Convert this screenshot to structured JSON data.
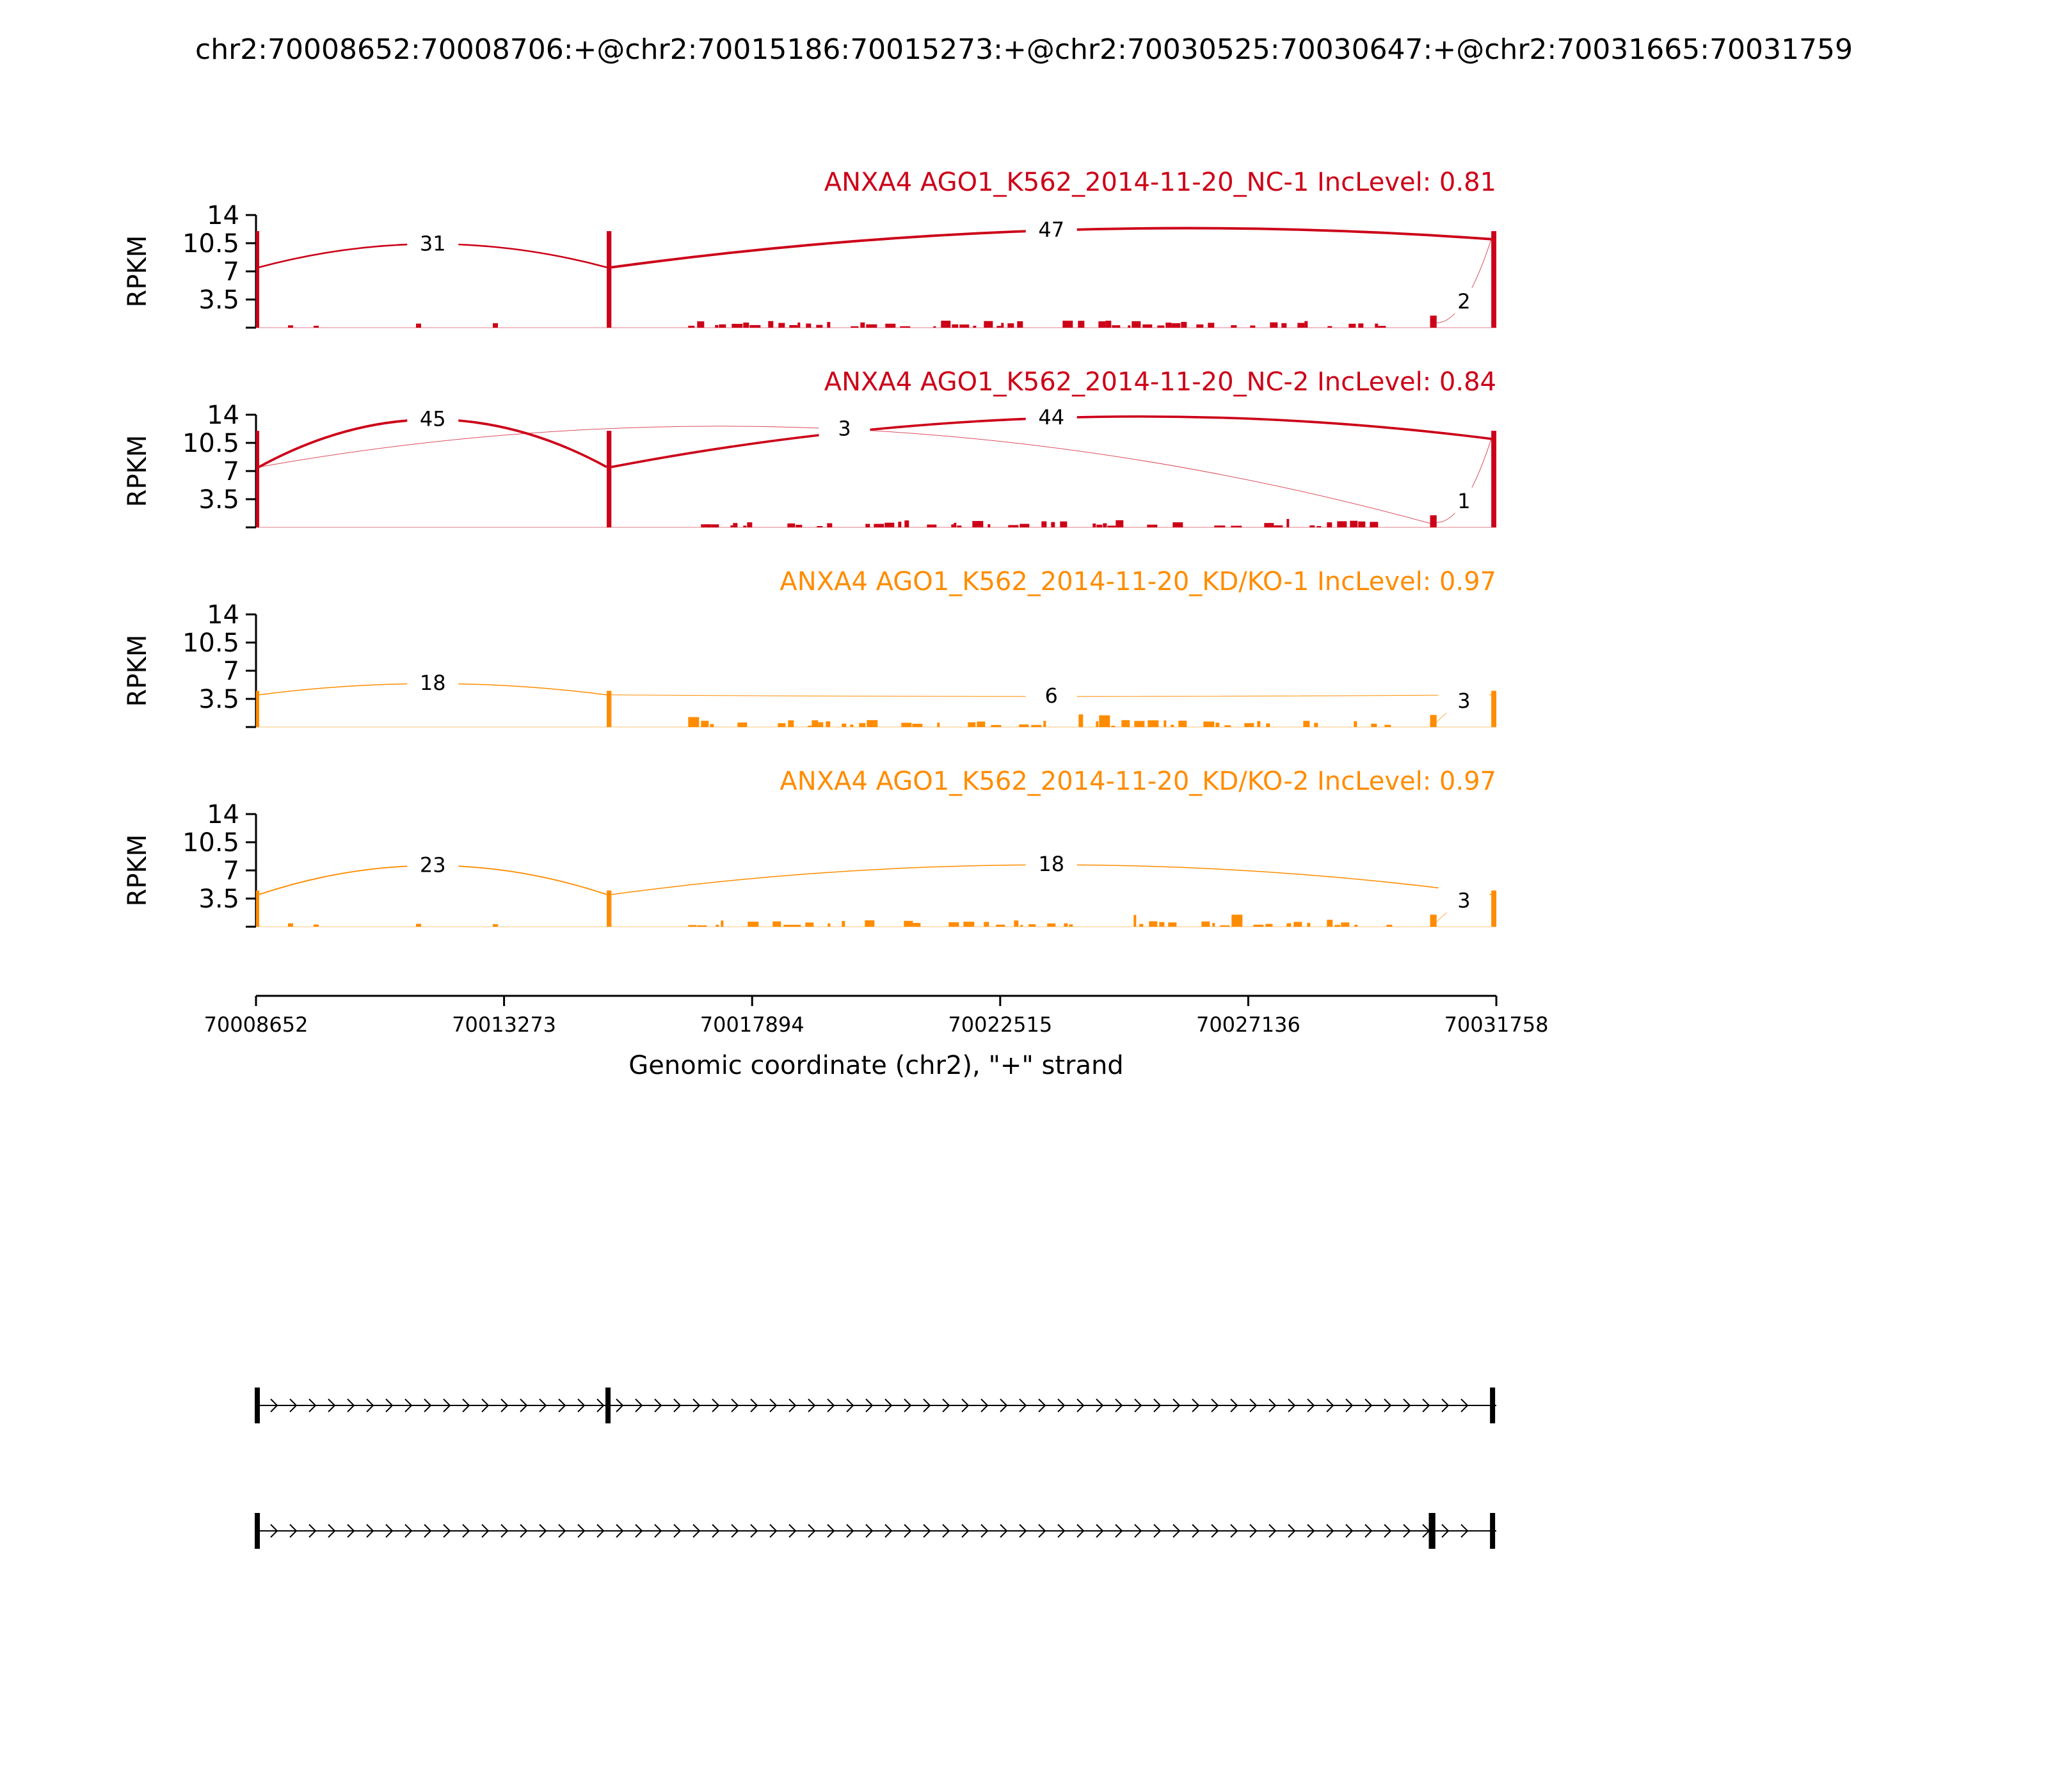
{
  "figure_title": "chr2:70008652:70008706:+@chr2:70015186:70015273:+@chr2:70030525:70030647:+@chr2:70031665:70031759",
  "colors": {
    "nc": "#cc0018",
    "kd": "#ff8c00",
    "axis": "#000000"
  },
  "chart_data": {
    "type": "area",
    "chart_kind": "sashimi",
    "x_range": [
      70008652,
      70031759
    ],
    "x_ticks": [
      "70008652",
      "70013273",
      "70017894",
      "70022515",
      "70027136",
      "70031758"
    ],
    "xlabel": "Genomic coordinate (chr2), \"+\" strand",
    "ylabel": "RPKM",
    "y_ticks": [
      "14",
      "10.5",
      "7",
      "3.5"
    ],
    "ylim": [
      0,
      14
    ],
    "exons": [
      {
        "start": 70008652,
        "end": 70008706
      },
      {
        "start": 70015186,
        "end": 70015273
      },
      {
        "start": 70030525,
        "end": 70030647
      },
      {
        "start": 70031665,
        "end": 70031759
      }
    ],
    "panels": [
      {
        "label": "ANXA4 AGO1_K562_2014-11-20_NC-1 IncLevel: 0.81",
        "color_key": "nc",
        "junctions": [
          {
            "from": 70008706,
            "to": 70015186,
            "count": "31"
          },
          {
            "from": 70015273,
            "to": 70031665,
            "count": "47"
          },
          {
            "from": 70030647,
            "to": 70031665,
            "count": "2"
          }
        ]
      },
      {
        "label": "ANXA4 AGO1_K562_2014-11-20_NC-2 IncLevel: 0.84",
        "color_key": "nc",
        "junctions": [
          {
            "from": 70008706,
            "to": 70015186,
            "count": "45"
          },
          {
            "from": 70015273,
            "to": 70031665,
            "count": "44"
          },
          {
            "from": 70008706,
            "to": 70030525,
            "count": "3"
          },
          {
            "from": 70030647,
            "to": 70031665,
            "count": "1"
          }
        ]
      },
      {
        "label": "ANXA4 AGO1_K562_2014-11-20_KD/KO-1 IncLevel: 0.97",
        "color_key": "kd",
        "junctions": [
          {
            "from": 70008706,
            "to": 70015186,
            "count": "18"
          },
          {
            "from": 70015273,
            "to": 70031665,
            "count": "6"
          },
          {
            "from": 70030647,
            "to": 70031665,
            "count": "3"
          }
        ]
      },
      {
        "label": "ANXA4 AGO1_K562_2014-11-20_KD/KO-2 IncLevel: 0.97",
        "color_key": "kd",
        "junctions": [
          {
            "from": 70008706,
            "to": 70015186,
            "count": "23"
          },
          {
            "from": 70015273,
            "to": 70031665,
            "count": "18"
          },
          {
            "from": 70030647,
            "to": 70031665,
            "count": "3"
          }
        ]
      }
    ],
    "isoforms": [
      {
        "exons": [
          0,
          1,
          3
        ]
      },
      {
        "exons": [
          0,
          2,
          3
        ]
      }
    ]
  }
}
